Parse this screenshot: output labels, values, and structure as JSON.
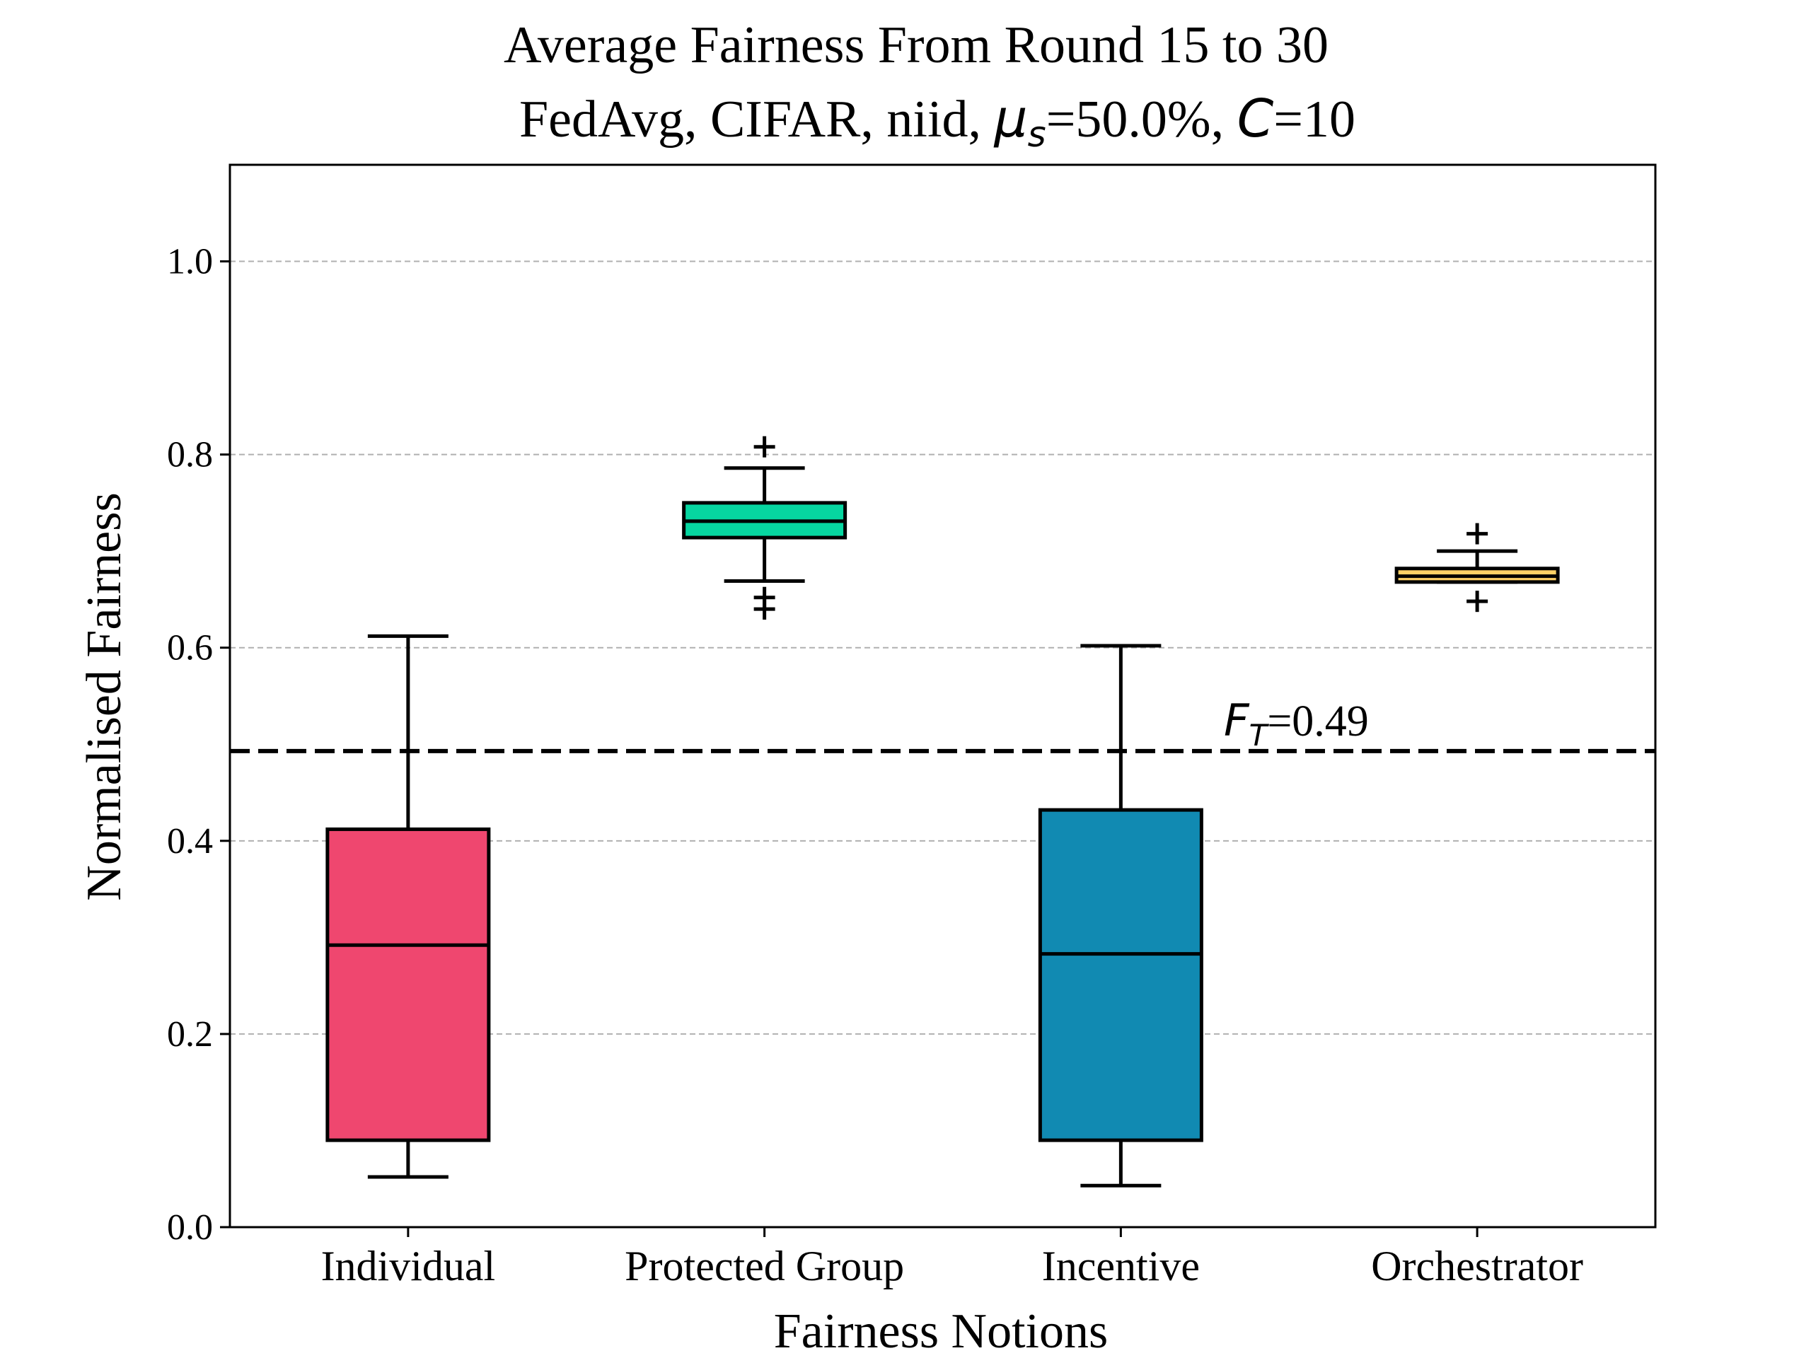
{
  "chart_data": {
    "type": "box",
    "title_line1": "Average Fairness From Round 15 to 30",
    "title_line2_prefix": "FedAvg, CIFAR, niid, ",
    "title_mu_symbol": "μ",
    "title_mu_sub": "s",
    "title_mu_value": "=50.0%, ",
    "title_c_symbol": "C",
    "title_c_value": "=10",
    "xlabel": "Fairness Notions",
    "ylabel": "Normalised Fairness",
    "ylim": [
      0.0,
      1.1
    ],
    "yticks": [
      0.0,
      0.2,
      0.4,
      0.6,
      0.8,
      1.0
    ],
    "ytick_labels": [
      "0.0",
      "0.2",
      "0.4",
      "0.6",
      "0.8",
      "1.0"
    ],
    "grid": "y-dashed",
    "categories": [
      "Individual",
      "Protected Group",
      "Incentive",
      "Orchestrator"
    ],
    "boxes": [
      {
        "q1": 0.09,
        "median": 0.292,
        "q3": 0.412,
        "whisker_low": 0.052,
        "whisker_high": 0.612,
        "outliers": [],
        "color": "#EF476F"
      },
      {
        "q1": 0.714,
        "median": 0.731,
        "q3": 0.75,
        "whisker_low": 0.669,
        "whisker_high": 0.786,
        "outliers": [
          0.808,
          0.652,
          0.64
        ],
        "color": "#06D6A0"
      },
      {
        "q1": 0.09,
        "median": 0.283,
        "q3": 0.432,
        "whisker_low": 0.043,
        "whisker_high": 0.602,
        "outliers": [],
        "color": "#118AB2"
      },
      {
        "q1": 0.668,
        "median": 0.674,
        "q3": 0.682,
        "whisker_low": 0.668,
        "whisker_high": 0.7,
        "outliers": [
          0.718,
          0.648
        ],
        "color": "#FFD166"
      }
    ],
    "threshold": {
      "value": 0.493,
      "label_symbol": "F",
      "label_sub": "T",
      "label_value": "=0.49"
    }
  }
}
